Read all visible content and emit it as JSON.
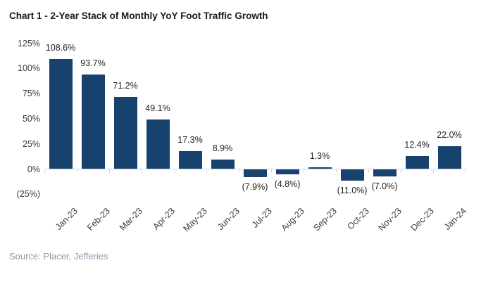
{
  "title": "Chart 1 - 2-Year Stack of Monthly YoY Foot Traffic Growth",
  "source": "Source: Placer, Jefferies",
  "colors": {
    "bar": "#17426E",
    "axis": "#D9D9D9",
    "title_text": "#1A1A1A",
    "value_label_text": "#222222",
    "tick_label_text": "#3B3B3B",
    "source_text": "#8A97A3",
    "background": "#FFFFFF"
  },
  "chart_data": {
    "type": "bar",
    "title": "Chart 1 - 2-Year Stack of Monthly YoY Foot Traffic Growth",
    "categories": [
      "Jan-23",
      "Feb-23",
      "Mar-23",
      "Apr-23",
      "May-23",
      "Jun-23",
      "Jul-23",
      "Aug-23",
      "Sep-23",
      "Oct-23",
      "Nov-23",
      "Dec-23",
      "Jan-24"
    ],
    "values": [
      108.6,
      93.7,
      71.2,
      49.1,
      17.3,
      8.9,
      -7.9,
      -4.8,
      1.3,
      -11.0,
      -7.0,
      12.4,
      22.0
    ],
    "data_labels": [
      "108.6%",
      "93.7%",
      "71.2%",
      "49.1%",
      "17.3%",
      "8.9%",
      "(7.9%)",
      "(4.8%)",
      "1.3%",
      "(11.0%)",
      "(7.0%)",
      "12.4%",
      "22.0%"
    ],
    "yticks": [
      {
        "label": "125%",
        "value": 125
      },
      {
        "label": "100%",
        "value": 100
      },
      {
        "label": "75%",
        "value": 75
      },
      {
        "label": "50%",
        "value": 50
      },
      {
        "label": "25%",
        "value": 25
      },
      {
        "label": "0%",
        "value": 0
      },
      {
        "label": "(25%)",
        "value": -25
      }
    ],
    "ylim": [
      -25,
      125
    ],
    "xlabel": "",
    "ylabel": "",
    "grid": false,
    "legend": false,
    "negative_label_format": "parentheses",
    "source": "Source: Placer, Jefferies"
  }
}
